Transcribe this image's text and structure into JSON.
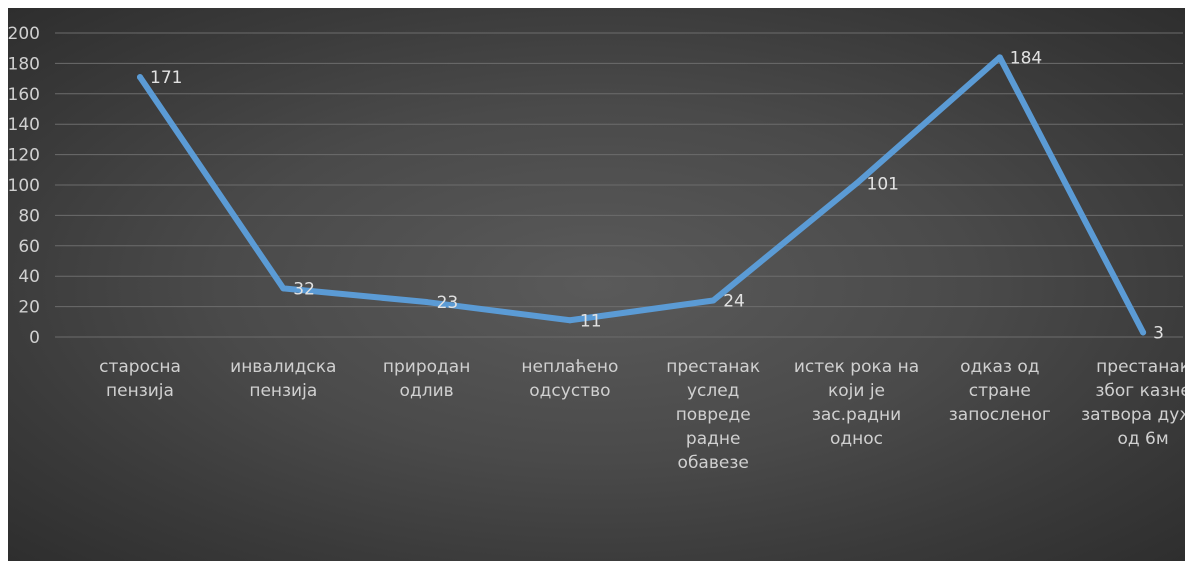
{
  "chart_data": {
    "type": "line",
    "title": "",
    "xlabel": "",
    "ylabel": "",
    "ylim": [
      0,
      200
    ],
    "yticks": [
      "0",
      "20",
      "40",
      "60",
      "80",
      "100",
      "120",
      "140",
      "160",
      "180",
      "200"
    ],
    "grid": true,
    "legend": "none",
    "categories": [
      [
        "старосна",
        "пензија"
      ],
      [
        "инвалидска",
        "пензија"
      ],
      [
        "природан",
        "одлив"
      ],
      [
        "неплаћено",
        "одсуство"
      ],
      [
        "престанак",
        "услед",
        "повреде",
        "радне",
        "обавезе"
      ],
      [
        "истек рока на",
        "који је",
        "зас.радни",
        "однос"
      ],
      [
        "одказ од",
        "стране",
        "запосленог"
      ],
      [
        "престанак",
        "због казне",
        "затвора дуже",
        "од 6м"
      ]
    ],
    "series": [
      {
        "values": [
          171,
          32,
          23,
          11,
          24,
          101,
          184,
          3
        ]
      }
    ],
    "data_labels": [
      "171",
      "32",
      "23",
      "11",
      "24",
      "101",
      "184",
      "3"
    ],
    "colors": {
      "line": "#5b9bd5",
      "background": "#404040",
      "grid": "#6c6c6c",
      "text": "#d0d0d0"
    }
  }
}
